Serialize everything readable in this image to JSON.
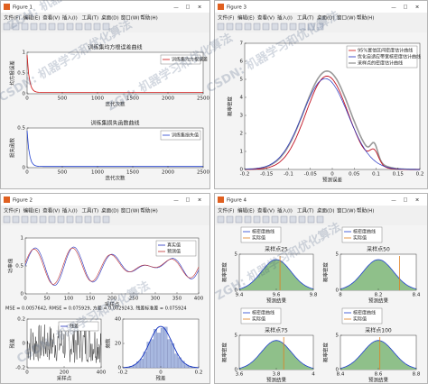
{
  "menu": [
    "文件(F)",
    "编辑(E)",
    "查看(V)",
    "插入(I)",
    "工具(T)",
    "桌面(D)",
    "窗口(W)",
    "帮助(H)"
  ],
  "windows": [
    {
      "title": "Figure 1",
      "axes": [
        {
          "title": "训练集均方根误差曲线",
          "xlabel": "迭代次数",
          "ylabel": "均方根误差",
          "xticks": [
            0,
            500,
            1000,
            1500,
            2000,
            2500
          ],
          "yticks": [
            0,
            0.5,
            1
          ],
          "legend": [
            "训练集均方根误差"
          ]
        },
        {
          "title": "训练集损失函数曲线",
          "xlabel": "迭代次数",
          "ylabel": "损失函数",
          "xticks": [
            0,
            500,
            1000,
            1500,
            2000,
            2500
          ],
          "yticks": [
            0,
            0.5
          ],
          "legend": [
            "训练集损失值"
          ]
        }
      ]
    },
    {
      "title": "Figure 3",
      "axes": [
        {
          "xlabel": "预测误差",
          "ylabel": "概率密度",
          "xticks": [
            -0.2,
            -0.15,
            -0.1,
            -0.05,
            0,
            0.05,
            0.1,
            0.15,
            0.2
          ],
          "yticks": [
            0,
            1,
            2,
            3,
            4,
            5,
            6,
            7
          ],
          "legend": [
            "95%置信区间密度估计曲线",
            "优化自适应带宽核密度估计曲线",
            "采样点的密度估计曲线"
          ]
        }
      ]
    },
    {
      "title": "Figure 2",
      "annotation": "MSE = 0.0057642, RMSE = 0.075929, 方差 = 0.0029243, 残差标准差 = 0.075924",
      "axes": [
        {
          "xlabel": "采样点",
          "ylabel": "功率值",
          "xticks": [
            0,
            50,
            100,
            150,
            200,
            250,
            300,
            350,
            400
          ],
          "yticks": [
            0,
            0.5,
            1
          ],
          "legend": [
            "真实值",
            "预测值"
          ]
        },
        {
          "xlabel": "采样点",
          "ylabel": "残差",
          "xticks": [
            0,
            200,
            400
          ],
          "yticks": [
            -0.2,
            0,
            0.2
          ],
          "legend": [
            "残差"
          ]
        },
        {
          "xlabel": "残差",
          "ylabel": "频数",
          "xticks": [
            -0.2,
            0,
            0.2
          ],
          "yticks": [
            0,
            20,
            40
          ],
          "legend": []
        }
      ]
    },
    {
      "title": "Figure 4",
      "axes": [
        {
          "title": "采样点25",
          "xlabel": "预测结果",
          "ylabel": "概率密度",
          "xticks": [
            9.4,
            9.6,
            9.8
          ],
          "yticks": [
            0,
            5
          ],
          "legend": [
            "核密度曲线",
            "实际值"
          ]
        },
        {
          "title": "采样点50",
          "xlabel": "预测结果",
          "ylabel": "概率密度",
          "xticks": [
            8,
            8.2,
            8.4
          ],
          "yticks": [
            0,
            5
          ],
          "legend": [
            "核密度曲线",
            "实际值"
          ]
        },
        {
          "title": "采样点75",
          "xlabel": "预测结果",
          "ylabel": "概率密度",
          "xticks": [
            3.6,
            3.8,
            4
          ],
          "yticks": [
            0,
            5
          ],
          "legend": [
            "核密度曲线",
            "实际值"
          ]
        },
        {
          "title": "采样点100",
          "xlabel": "预测结果",
          "ylabel": "概率密度",
          "xticks": [
            8.4,
            8.6,
            8.8
          ],
          "yticks": [
            0,
            5
          ],
          "legend": [
            "核密度曲线",
            "实际值"
          ]
        }
      ]
    }
  ],
  "watermarks": [
    "ZGH: 机器学习和优化算法",
    "CSDN: 机器学习和优化算法",
    "ZGH: 机器学习和优化算法",
    "CSDN: 机器学习和优化算法",
    "ZGH: 机器学习和优化算法",
    "CSDN: 机器学习和优化算法"
  ]
}
